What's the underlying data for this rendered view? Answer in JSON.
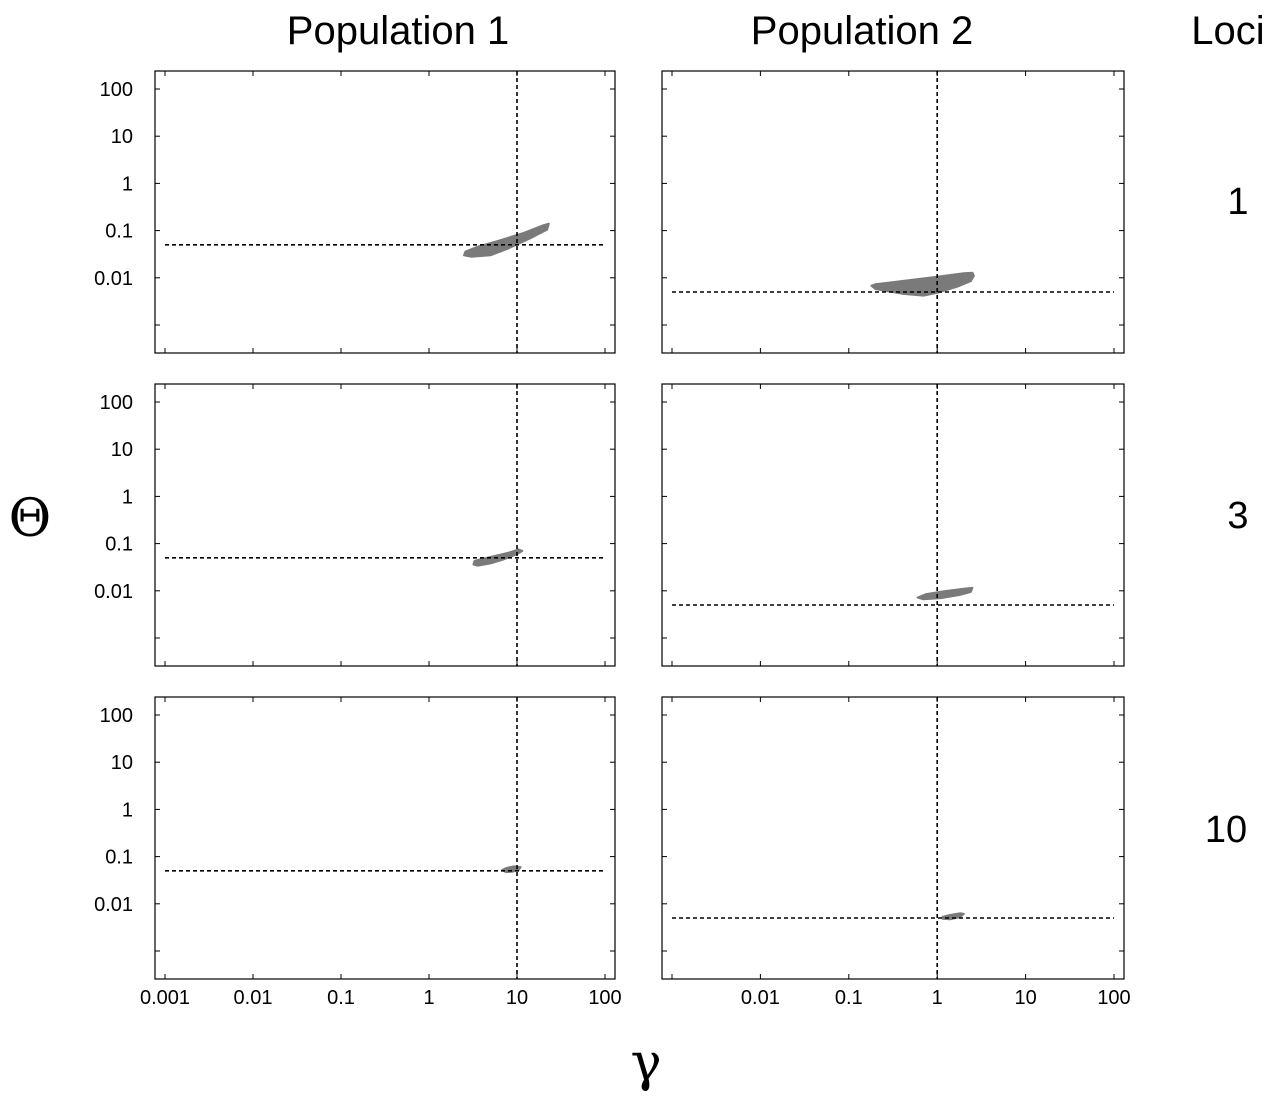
{
  "figure": {
    "column_titles": [
      "Population 1",
      "Population 2"
    ],
    "loci_header": "Loci",
    "row_labels": [
      "1",
      "3",
      "10"
    ],
    "xlabel": "γ",
    "ylabel": "Θ"
  },
  "chart_data": [
    {
      "type": "contour-region",
      "column": "Population 1",
      "loci": "1",
      "x_scale": "log",
      "y_scale": "log",
      "xlim": [
        0.001,
        100
      ],
      "ylim": [
        0.001,
        100
      ],
      "xticks": [
        "0.001",
        "0.01",
        "0.1",
        "1",
        "10",
        "100"
      ],
      "yticks": [
        "0.01",
        "0.1",
        "1",
        "10",
        "100"
      ],
      "reference_x": 10,
      "reference_y": 0.05,
      "region": [
        [
          2.5,
          0.03
        ],
        [
          2.6,
          0.036
        ],
        [
          3.5,
          0.045
        ],
        [
          6,
          0.06
        ],
        [
          12,
          0.09
        ],
        [
          20,
          0.13
        ],
        [
          23,
          0.14
        ],
        [
          22,
          0.105
        ],
        [
          14,
          0.068
        ],
        [
          8,
          0.042
        ],
        [
          5,
          0.03
        ],
        [
          3,
          0.028
        ]
      ],
      "region_color": "#7a7a7a",
      "reference_line_style": "dashed"
    },
    {
      "type": "contour-region",
      "column": "Population 2",
      "loci": "1",
      "x_scale": "log",
      "y_scale": "log",
      "xlim": [
        0.001,
        100
      ],
      "ylim": [
        0.001,
        100
      ],
      "xticks": [
        "0.01",
        "0.1",
        "1",
        "10",
        "100"
      ],
      "yticks": [],
      "reference_x": 1,
      "reference_y": 0.005,
      "region": [
        [
          0.18,
          0.0068
        ],
        [
          0.2,
          0.0073
        ],
        [
          0.5,
          0.009
        ],
        [
          1,
          0.0105
        ],
        [
          2,
          0.0125
        ],
        [
          2.5,
          0.0128
        ],
        [
          2.6,
          0.011
        ],
        [
          2.4,
          0.0085
        ],
        [
          1.7,
          0.0065
        ],
        [
          1,
          0.0048
        ],
        [
          0.7,
          0.0042
        ],
        [
          0.4,
          0.0046
        ],
        [
          0.2,
          0.0058
        ]
      ],
      "region_color": "#7a7a7a",
      "reference_line_style": "dashed"
    },
    {
      "type": "contour-region",
      "column": "Population 1",
      "loci": "3",
      "x_scale": "log",
      "y_scale": "log",
      "xlim": [
        0.001,
        100
      ],
      "ylim": [
        0.001,
        100
      ],
      "xticks": [
        "0.001",
        "0.01",
        "0.1",
        "1",
        "10",
        "100"
      ],
      "yticks": [
        "0.01",
        "0.1",
        "1",
        "10",
        "100"
      ],
      "reference_x": 10,
      "reference_y": 0.05,
      "region": [
        [
          3.2,
          0.036
        ],
        [
          3.3,
          0.043
        ],
        [
          5,
          0.052
        ],
        [
          8,
          0.064
        ],
        [
          10.5,
          0.075
        ],
        [
          11.5,
          0.07
        ],
        [
          10,
          0.06
        ],
        [
          7,
          0.046
        ],
        [
          5,
          0.038
        ],
        [
          3.6,
          0.034
        ]
      ],
      "region_color": "#7a7a7a",
      "reference_line_style": "dashed"
    },
    {
      "type": "contour-region",
      "column": "Population 2",
      "loci": "3",
      "x_scale": "log",
      "y_scale": "log",
      "xlim": [
        0.001,
        100
      ],
      "ylim": [
        0.001,
        100
      ],
      "xticks": [
        "0.01",
        "0.1",
        "1",
        "10",
        "100"
      ],
      "yticks": [],
      "reference_x": 1,
      "reference_y": 0.005,
      "region": [
        [
          0.6,
          0.0072
        ],
        [
          0.75,
          0.0085
        ],
        [
          1.2,
          0.0098
        ],
        [
          2,
          0.011
        ],
        [
          2.5,
          0.0115
        ],
        [
          2.4,
          0.0095
        ],
        [
          1.8,
          0.0082
        ],
        [
          1.1,
          0.007
        ],
        [
          0.7,
          0.0066
        ]
      ],
      "region_color": "#7a7a7a",
      "reference_line_style": "dashed"
    },
    {
      "type": "contour-region",
      "column": "Population 1",
      "loci": "10",
      "x_scale": "log",
      "y_scale": "log",
      "xlim": [
        0.001,
        100
      ],
      "ylim": [
        0.001,
        100
      ],
      "xticks": [
        "0.001",
        "0.01",
        "0.1",
        "1",
        "10",
        "100"
      ],
      "yticks": [
        "0.01",
        "0.1",
        "1",
        "10",
        "100"
      ],
      "reference_x": 10,
      "reference_y": 0.05,
      "region": [
        [
          6.8,
          0.052
        ],
        [
          7.5,
          0.057
        ],
        [
          9.2,
          0.062
        ],
        [
          11,
          0.06
        ],
        [
          10.5,
          0.053
        ],
        [
          9,
          0.048
        ],
        [
          7.5,
          0.047
        ]
      ],
      "region_color": "#7a7a7a",
      "reference_line_style": "dashed"
    },
    {
      "type": "contour-region",
      "column": "Population 2",
      "loci": "10",
      "x_scale": "log",
      "y_scale": "log",
      "xlim": [
        0.001,
        100
      ],
      "ylim": [
        0.001,
        100
      ],
      "xticks": [
        "0.01",
        "0.1",
        "1",
        "10",
        "100"
      ],
      "yticks": [],
      "reference_x": 1,
      "reference_y": 0.005,
      "region": [
        [
          1.15,
          0.0053
        ],
        [
          1.4,
          0.0058
        ],
        [
          1.8,
          0.0063
        ],
        [
          2,
          0.0061
        ],
        [
          1.8,
          0.0052
        ],
        [
          1.4,
          0.0047
        ],
        [
          1.15,
          0.0048
        ]
      ],
      "region_color": "#7a7a7a",
      "reference_line_style": "dashed"
    }
  ]
}
